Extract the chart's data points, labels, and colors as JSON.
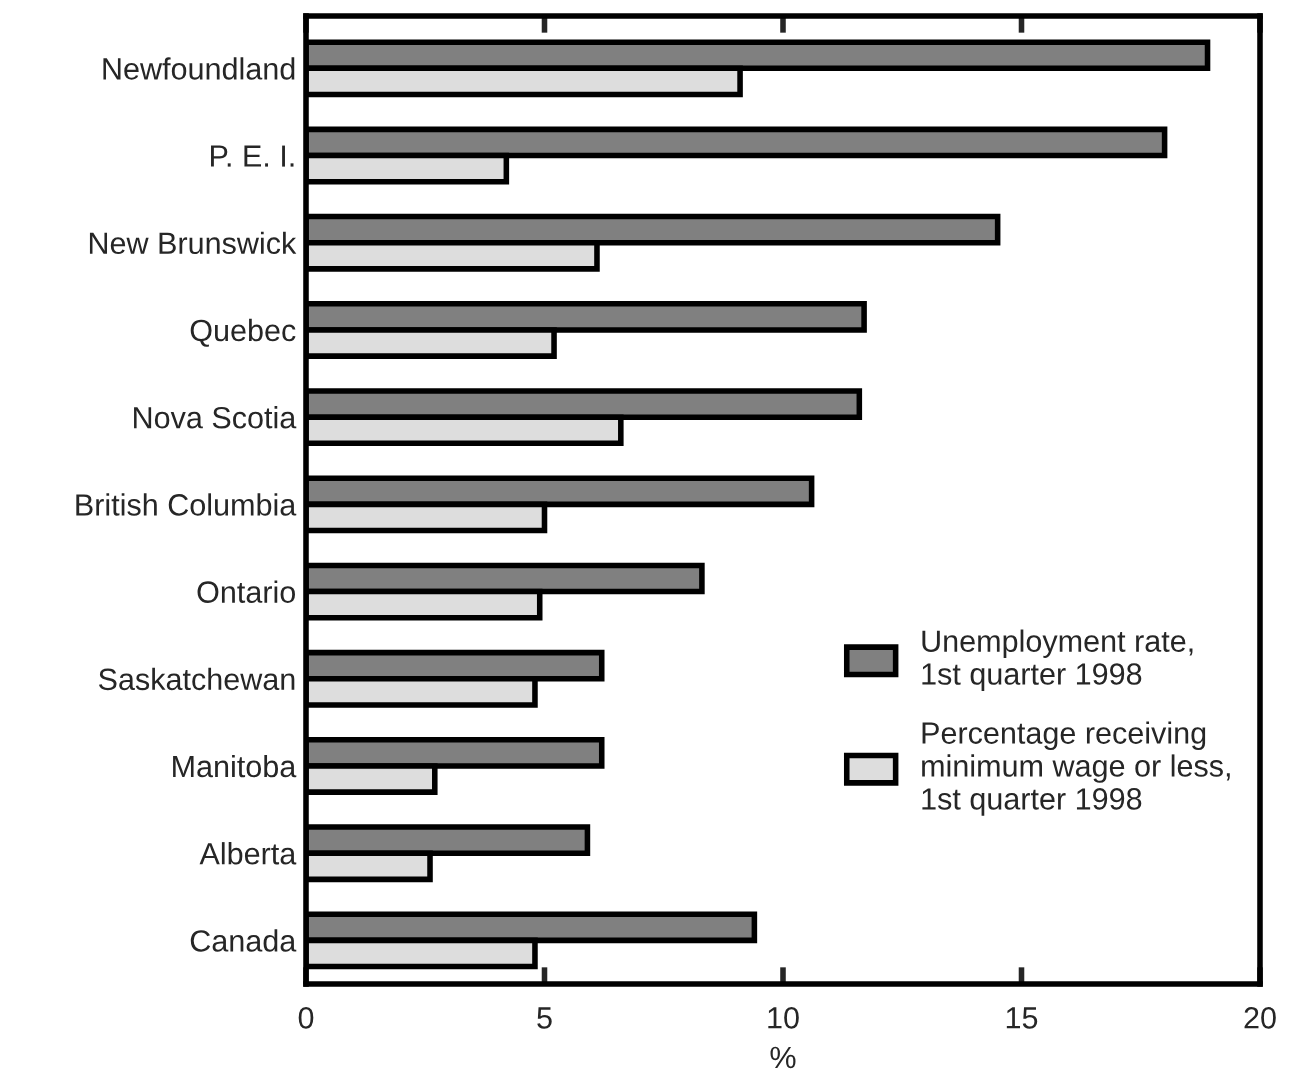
{
  "chart_data": {
    "type": "bar",
    "orientation": "horizontal",
    "xlabel": "%",
    "categories": [
      "Newfoundland",
      "P. E. I.",
      "New Brunswick",
      "Quebec",
      "Nova Scotia",
      "British Columbia",
      "Ontario",
      "Saskatchewan",
      "Manitoba",
      "Alberta",
      "Canada"
    ],
    "series": [
      {
        "name": "Unemployment rate,\n1st quarter 1998",
        "color": "#808080",
        "values": [
          18.9,
          18.0,
          14.5,
          11.7,
          11.6,
          10.6,
          8.3,
          6.2,
          6.2,
          5.9,
          9.4
        ]
      },
      {
        "name": "Percentage receiving\nminimum wage or less,\n1st quarter 1998",
        "color": "#dddddd",
        "values": [
          9.1,
          4.2,
          6.1,
          5.2,
          6.6,
          5.0,
          4.9,
          4.8,
          2.7,
          2.6,
          4.8
        ]
      }
    ],
    "xlim": [
      0,
      20
    ],
    "xticks": [
      0,
      5,
      10,
      15,
      20
    ],
    "grid": false,
    "legend": "right"
  }
}
